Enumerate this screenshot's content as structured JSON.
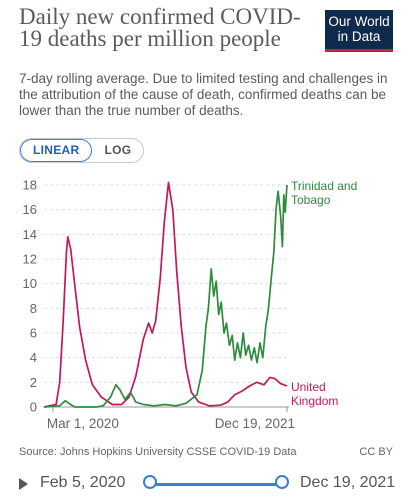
{
  "header": {
    "title": "Daily new confirmed COVID-19 deaths per million people",
    "subtitle": "7-day rolling average. Due to limited testing and challenges in the attribution of the cause of death, confirmed deaths can be lower than the true number of deaths.",
    "logo_line1": "Our World",
    "logo_line2": "in Data"
  },
  "scale_toggle": {
    "linear_label": "LINEAR",
    "log_label": "LOG",
    "selected": "LINEAR"
  },
  "footer": {
    "source": "Source: Johns Hopkins University CSSE COVID-19 Data",
    "license": "CC BY"
  },
  "timeline": {
    "start_label": "Feb 5, 2020",
    "end_label": "Dec 19, 2021"
  },
  "chart_data": {
    "type": "line",
    "xlabel": "",
    "ylabel": "",
    "x_range": [
      "2020-02-05",
      "2021-12-19"
    ],
    "ylim": [
      0,
      18
    ],
    "y_ticks": [
      0,
      2,
      4,
      6,
      8,
      10,
      12,
      14,
      16,
      18
    ],
    "x_tick_labels": [
      {
        "date": "2020-03-01",
        "label": "Mar 1, 2020"
      },
      {
        "date": "2021-12-19",
        "label": "Dec 19, 2021"
      }
    ],
    "grid": "horizontal dashed",
    "legend": "inline at line ends, right",
    "series": [
      {
        "name": "United Kingdom",
        "color": "#c2185b",
        "label_lines": [
          "United",
          "Kingdom"
        ],
        "points": [
          [
            "2020-02-05",
            0
          ],
          [
            "2020-03-10",
            0.2
          ],
          [
            "2020-03-20",
            2.0
          ],
          [
            "2020-03-30",
            7.0
          ],
          [
            "2020-04-08",
            12.5
          ],
          [
            "2020-04-12",
            13.8
          ],
          [
            "2020-04-20",
            12.8
          ],
          [
            "2020-05-01",
            10.0
          ],
          [
            "2020-05-15",
            6.5
          ],
          [
            "2020-06-01",
            3.8
          ],
          [
            "2020-06-20",
            1.8
          ],
          [
            "2020-07-15",
            0.8
          ],
          [
            "2020-08-15",
            0.2
          ],
          [
            "2020-09-10",
            0.2
          ],
          [
            "2020-10-01",
            0.8
          ],
          [
            "2020-10-20",
            2.5
          ],
          [
            "2020-11-10",
            5.5
          ],
          [
            "2020-11-25",
            6.8
          ],
          [
            "2020-12-05",
            6.0
          ],
          [
            "2020-12-15",
            7.0
          ],
          [
            "2020-12-28",
            10.5
          ],
          [
            "2021-01-08",
            15.0
          ],
          [
            "2021-01-20",
            18.2
          ],
          [
            "2021-02-01",
            16.0
          ],
          [
            "2021-02-12",
            11.0
          ],
          [
            "2021-02-25",
            6.5
          ],
          [
            "2021-03-10",
            3.2
          ],
          [
            "2021-03-25",
            1.2
          ],
          [
            "2021-04-15",
            0.4
          ],
          [
            "2021-05-15",
            0.1
          ],
          [
            "2021-06-15",
            0.15
          ],
          [
            "2021-07-05",
            0.4
          ],
          [
            "2021-07-25",
            1.0
          ],
          [
            "2021-08-15",
            1.3
          ],
          [
            "2021-09-05",
            1.7
          ],
          [
            "2021-09-25",
            2.0
          ],
          [
            "2021-10-15",
            1.8
          ],
          [
            "2021-11-01",
            2.4
          ],
          [
            "2021-11-15",
            2.3
          ],
          [
            "2021-12-01",
            1.9
          ],
          [
            "2021-12-10",
            1.8
          ],
          [
            "2021-12-19",
            1.7
          ]
        ]
      },
      {
        "name": "Trinidad and Tobago",
        "color": "#2e8b3e",
        "label_lines": [
          "Trinidad and",
          "Tobago"
        ],
        "points": [
          [
            "2020-02-05",
            0
          ],
          [
            "2020-03-20",
            0.1
          ],
          [
            "2020-04-05",
            0.5
          ],
          [
            "2020-04-15",
            0.3
          ],
          [
            "2020-05-01",
            0
          ],
          [
            "2020-07-01",
            0
          ],
          [
            "2020-07-20",
            0.1
          ],
          [
            "2020-08-10",
            0.8
          ],
          [
            "2020-08-25",
            1.8
          ],
          [
            "2020-09-05",
            1.4
          ],
          [
            "2020-09-20",
            0.6
          ],
          [
            "2020-10-05",
            1.2
          ],
          [
            "2020-10-20",
            0.4
          ],
          [
            "2020-11-10",
            0.2
          ],
          [
            "2020-12-10",
            0.1
          ],
          [
            "2021-01-10",
            0.2
          ],
          [
            "2021-02-10",
            0.1
          ],
          [
            "2021-03-10",
            0.3
          ],
          [
            "2021-04-10",
            1.0
          ],
          [
            "2021-04-25",
            3.0
          ],
          [
            "2021-05-05",
            6.5
          ],
          [
            "2021-05-12",
            8.0
          ],
          [
            "2021-05-20",
            11.2
          ],
          [
            "2021-05-27",
            9.0
          ],
          [
            "2021-06-03",
            10.2
          ],
          [
            "2021-06-10",
            7.5
          ],
          [
            "2021-06-17",
            8.5
          ],
          [
            "2021-06-25",
            6.0
          ],
          [
            "2021-07-02",
            6.8
          ],
          [
            "2021-07-10",
            5.0
          ],
          [
            "2021-07-18",
            5.8
          ],
          [
            "2021-07-25",
            3.8
          ],
          [
            "2021-08-02",
            5.2
          ],
          [
            "2021-08-10",
            4.0
          ],
          [
            "2021-08-18",
            6.0
          ],
          [
            "2021-08-25",
            4.2
          ],
          [
            "2021-09-02",
            5.0
          ],
          [
            "2021-09-10",
            3.8
          ],
          [
            "2021-09-18",
            4.8
          ],
          [
            "2021-09-26",
            3.6
          ],
          [
            "2021-10-04",
            5.2
          ],
          [
            "2021-10-12",
            4.0
          ],
          [
            "2021-10-20",
            6.5
          ],
          [
            "2021-10-28",
            8.0
          ],
          [
            "2021-11-05",
            10.5
          ],
          [
            "2021-11-12",
            12.5
          ],
          [
            "2021-11-18",
            16.0
          ],
          [
            "2021-11-24",
            17.5
          ],
          [
            "2021-12-01",
            15.5
          ],
          [
            "2021-12-06",
            13.0
          ],
          [
            "2021-12-10",
            17.2
          ],
          [
            "2021-12-14",
            15.8
          ],
          [
            "2021-12-19",
            18.0
          ]
        ]
      }
    ]
  }
}
